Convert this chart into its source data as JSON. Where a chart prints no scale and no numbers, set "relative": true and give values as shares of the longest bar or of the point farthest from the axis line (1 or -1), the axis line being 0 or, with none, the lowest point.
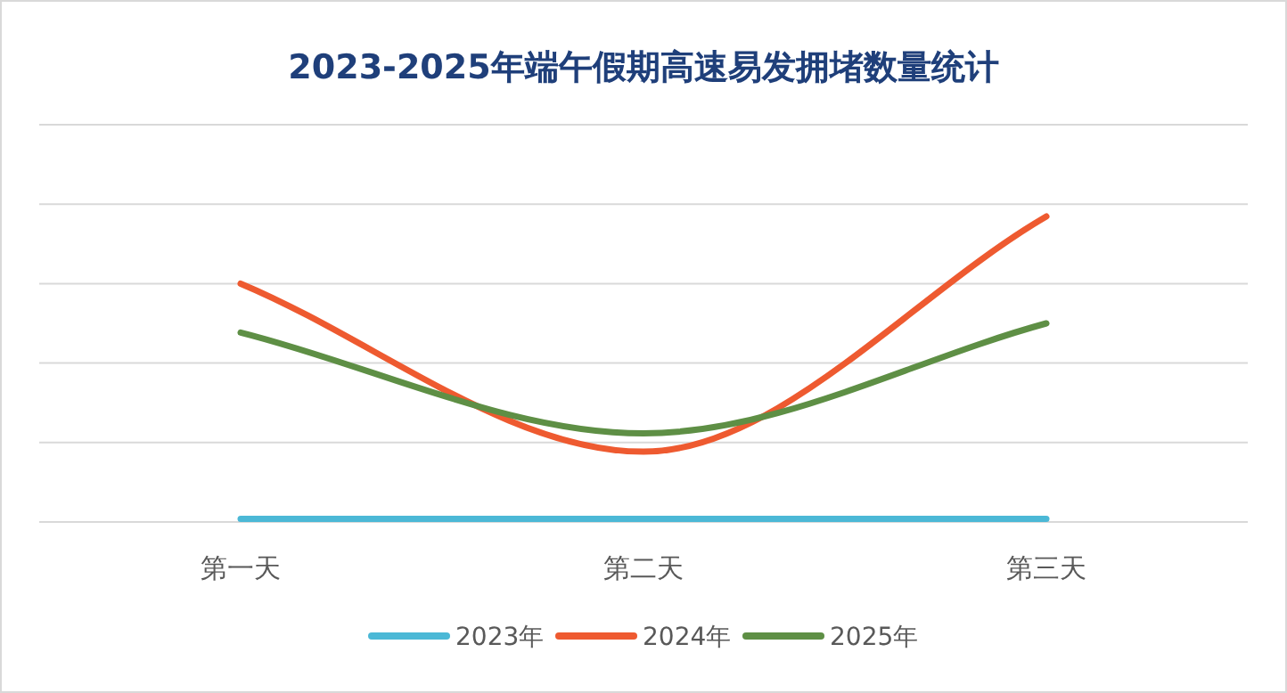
{
  "chart_data": {
    "type": "line",
    "title": "2023-2025年端午假期高速易发拥堵数量统计",
    "relative": true,
    "categories": [
      "第一天",
      "第二天",
      "第三天"
    ],
    "series": [
      {
        "name": "2023年",
        "color": "#4bb8d6",
        "values": [
          0.01,
          0.01,
          0.01
        ]
      },
      {
        "name": "2024年",
        "color": "#ee5a30",
        "values": [
          0.78,
          0.23,
          1
        ]
      },
      {
        "name": "2025年",
        "color": "#5e8f45",
        "values": [
          0.62,
          0.29,
          0.65
        ]
      }
    ],
    "grid": "y",
    "legend": "bottom",
    "marker": "none",
    "line_style": "solid"
  }
}
